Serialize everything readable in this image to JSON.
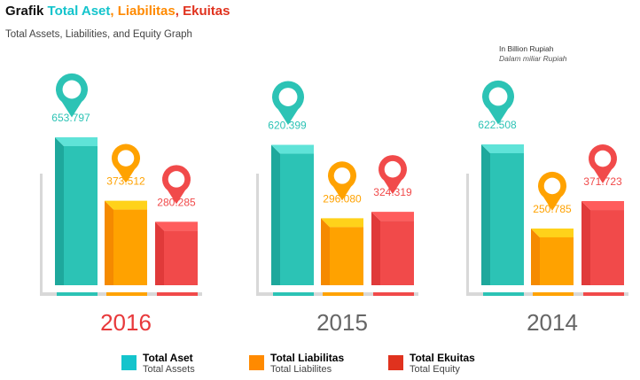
{
  "header": {
    "title_prefix": "Grafik",
    "title_assets": "Total Aset",
    "title_sep1": ",",
    "title_liab": "Liabilitas",
    "title_sep2": ",",
    "title_equity": "Ekuitas",
    "subtitle": "Total Assets, Liabilities, and Equity Graph",
    "unit_en": "In Billion Rupiah",
    "unit_id": "Dalam miliar Rupiah"
  },
  "colors": {
    "assets": "#2cc3b5",
    "liabilities": "#ffa200",
    "equity": "#f14a4a",
    "year_highlight": "#e8393b",
    "year_default": "#666666",
    "axis": "#d8d8d8"
  },
  "chart_data": {
    "type": "bar",
    "categories": [
      "2016",
      "2015",
      "2014"
    ],
    "series": [
      {
        "name": "Total Aset",
        "values": [
          653.797,
          620.399,
          622.508
        ]
      },
      {
        "name": "Total Liabilitas",
        "values": [
          373.512,
          296.08,
          250.785
        ]
      },
      {
        "name": "Total Ekuitas",
        "values": [
          280.285,
          324.319,
          371.723
        ]
      }
    ],
    "value_labels": [
      [
        "653.797",
        "373.512",
        "280.285"
      ],
      [
        "620.399",
        "296.080",
        "324.319"
      ],
      [
        "622.508",
        "250.785",
        "371.723"
      ]
    ],
    "title": "Grafik Total Aset, Liabilitas, Ekuitas",
    "subtitle": "Total Assets, Liabilities, and Equity Graph",
    "ylabel": "In Billion Rupiah",
    "ylim": [
      0,
      700
    ],
    "grid": false,
    "legend": "bottom"
  },
  "legend": [
    {
      "name": "Total Aset",
      "sub": "Total Assets",
      "color": "#14c4cc"
    },
    {
      "name": "Total Liabilitas",
      "sub": "Total Liabilites",
      "color": "#ff8a00"
    },
    {
      "name": "Total Ekuitas",
      "sub": "Total Equity",
      "color": "#e0321e"
    }
  ]
}
